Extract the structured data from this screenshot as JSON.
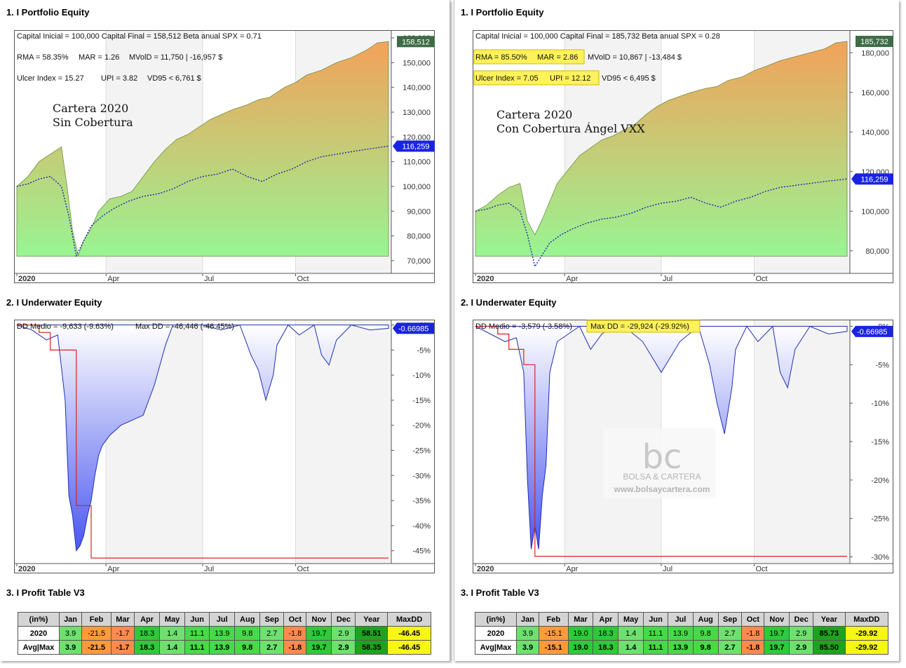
{
  "panels": [
    {
      "id": "left",
      "equity_title": "1. I Portfolio Equity",
      "underwater_title": "2. I Underwater Equity",
      "profit_title": "3. I Profit Table V3",
      "stats": {
        "line1": "Capital Inicial = 100,000   Capital Final = 158,512   Beta anual SPX = 0.71",
        "rma": "RMA = 58.35%",
        "mar": "MAR = 1.26",
        "mvold": "MVolD = 11,750 | -16,957 $",
        "ulcer": "Ulcer Index = 15.27",
        "upi": "UPI = 3.82",
        "vd95": "VD95 < 6,761 $"
      },
      "highlight_rma_mar": false,
      "highlight_ulcer_upi": false,
      "highlight_maxdd": false,
      "annotation_line1": "Cartera 2020",
      "annotation_line2": "Sin Cobertura",
      "dd_medio": "DD Medio = -9,633 (-9.63%)",
      "max_dd": "Max DD = -46,446 (-46.45%)",
      "final_equity_label": "158,512",
      "spx_label": "116,259",
      "uw_label": "-0.66985",
      "watermark": null
    },
    {
      "id": "right",
      "equity_title": "1. I Portfolio Equity",
      "underwater_title": "2. I Underwater Equity",
      "profit_title": "3. I Profit Table V3",
      "stats": {
        "line1": "Capital Inicial = 100,000   Capital Final = 185,732   Beta anual SPX = 0.28",
        "rma": "RMA = 85.50%",
        "mar": "MAR = 2.86",
        "mvold": "MVolD = 10,867 | -13,484 $",
        "ulcer": "Ulcer Index = 7.05",
        "upi": "UPI = 12.12",
        "vd95": "VD95 < 6,495 $"
      },
      "highlight_rma_mar": true,
      "highlight_ulcer_upi": true,
      "highlight_maxdd": true,
      "annotation_line1": "Cartera 2020",
      "annotation_line2": "Con Cobertura Ángel VXX",
      "dd_medio": "DD Medio = -3,579 (-3.58%)",
      "max_dd": "Max DD = -29,924 (-29.92%)",
      "final_equity_label": "185,732",
      "spx_label": "116,259",
      "uw_label": "-0.66985",
      "watermark": {
        "logo": "bc",
        "brand": "BOLSA & CARTERA",
        "url": "www.bolsaycartera.com"
      }
    }
  ],
  "profit_table": {
    "headers": [
      "(in%)",
      "Jan",
      "Feb",
      "Mar",
      "Apr",
      "May",
      "Jun",
      "Jul",
      "Aug",
      "Sep",
      "Oct",
      "Nov",
      "Dec",
      "Year",
      "MaxDD"
    ],
    "left_rows": [
      [
        "2020",
        "3.9",
        "-21.5",
        "-1.7",
        "18.3",
        "1.4",
        "11.1",
        "13.9",
        "9.8",
        "2.7",
        "-1.8",
        "19.7",
        "2.9",
        "58.51",
        "-46.45"
      ],
      [
        "Avg|Max",
        "3.9",
        "-21.5",
        "-1.7",
        "18.3",
        "1.4",
        "11.1",
        "13.9",
        "9.8",
        "2.7",
        "-1.8",
        "19.7",
        "2.9",
        "58.35",
        "-46.45"
      ]
    ],
    "right_rows": [
      [
        "2020",
        "3.9",
        "-15.1",
        "19.0",
        "18.3",
        "1.4",
        "11.1",
        "13.9",
        "9.8",
        "2.7",
        "-1.8",
        "19.7",
        "2.9",
        "85.73",
        "-29.92"
      ],
      [
        "Avg|Max",
        "3.9",
        "-15.1",
        "19.0",
        "18.3",
        "1.4",
        "11.1",
        "13.9",
        "9.8",
        "2.7",
        "-1.8",
        "19.7",
        "2.9",
        "85.50",
        "-29.92"
      ]
    ]
  },
  "chart_data": [
    {
      "type": "area",
      "panel": "left-equity",
      "x_tick_labels": [
        "2020",
        "Apr",
        "Jul",
        "Oct"
      ],
      "ylim": [
        66000,
        162000
      ],
      "y_ticks": [
        70000,
        80000,
        90000,
        100000,
        110000,
        120000,
        130000,
        140000,
        150000,
        160000
      ],
      "y_tick_labels": [
        "70,000",
        "80,000",
        "90,000",
        "100,000",
        "110,000",
        "120,000",
        "130,000",
        "140,000",
        "150,000",
        "160,000"
      ],
      "series": [
        {
          "name": "Portfolio",
          "x": [
            0,
            0.03,
            0.06,
            0.09,
            0.12,
            0.135,
            0.15,
            0.165,
            0.18,
            0.2,
            0.22,
            0.25,
            0.28,
            0.31,
            0.34,
            0.37,
            0.4,
            0.43,
            0.46,
            0.49,
            0.52,
            0.55,
            0.58,
            0.62,
            0.65,
            0.68,
            0.72,
            0.75,
            0.78,
            0.82,
            0.86,
            0.9,
            0.94,
            0.97,
            1.0
          ],
          "values": [
            100000,
            104000,
            110000,
            113000,
            116000,
            100000,
            82000,
            72000,
            78000,
            83000,
            90000,
            95000,
            96000,
            98000,
            104000,
            110000,
            115000,
            119000,
            121000,
            124000,
            127000,
            129000,
            131000,
            133000,
            135000,
            136000,
            140000,
            142000,
            145000,
            147000,
            150000,
            152000,
            155000,
            158000,
            158512
          ]
        },
        {
          "name": "SPX",
          "x": [
            0,
            0.03,
            0.06,
            0.09,
            0.12,
            0.14,
            0.16,
            0.18,
            0.2,
            0.23,
            0.26,
            0.3,
            0.34,
            0.38,
            0.42,
            0.46,
            0.5,
            0.54,
            0.58,
            0.62,
            0.66,
            0.7,
            0.74,
            0.78,
            0.82,
            0.86,
            0.9,
            0.94,
            1.0
          ],
          "values": [
            100000,
            101000,
            103000,
            104000,
            100000,
            88000,
            72000,
            78000,
            84000,
            88000,
            91000,
            94000,
            96000,
            97000,
            99000,
            102000,
            104000,
            105000,
            107000,
            104000,
            102000,
            105000,
            107000,
            110000,
            112000,
            113000,
            114000,
            115000,
            116259
          ]
        }
      ]
    },
    {
      "type": "area",
      "panel": "right-equity",
      "x_tick_labels": [
        "2020",
        "Apr",
        "Jul",
        "Oct"
      ],
      "ylim": [
        70000,
        190000
      ],
      "y_ticks": [
        80000,
        100000,
        120000,
        140000,
        160000,
        180000
      ],
      "y_tick_labels": [
        "80,000",
        "100,000",
        "120,000",
        "140,000",
        "160,000",
        "180,000"
      ],
      "series": [
        {
          "name": "Portfolio",
          "x": [
            0,
            0.03,
            0.06,
            0.09,
            0.12,
            0.14,
            0.16,
            0.18,
            0.2,
            0.22,
            0.25,
            0.28,
            0.31,
            0.34,
            0.37,
            0.4,
            0.43,
            0.46,
            0.49,
            0.52,
            0.55,
            0.58,
            0.62,
            0.65,
            0.68,
            0.72,
            0.75,
            0.78,
            0.82,
            0.86,
            0.9,
            0.94,
            0.97,
            1.0
          ],
          "values": [
            100000,
            103000,
            108000,
            112000,
            114000,
            95000,
            88000,
            96000,
            105000,
            114000,
            121000,
            128000,
            132000,
            136000,
            138000,
            141000,
            144000,
            149000,
            153000,
            156000,
            158000,
            160000,
            162000,
            163000,
            166000,
            168000,
            171000,
            173000,
            176000,
            178000,
            180000,
            182000,
            185000,
            185732
          ]
        },
        {
          "name": "SPX",
          "x": [
            0,
            0.03,
            0.06,
            0.09,
            0.12,
            0.14,
            0.16,
            0.18,
            0.2,
            0.23,
            0.26,
            0.3,
            0.34,
            0.38,
            0.42,
            0.46,
            0.5,
            0.54,
            0.58,
            0.62,
            0.66,
            0.7,
            0.74,
            0.78,
            0.82,
            0.86,
            0.9,
            0.94,
            1.0
          ],
          "values": [
            100000,
            101000,
            103000,
            104000,
            100000,
            88000,
            72000,
            78000,
            84000,
            88000,
            91000,
            94000,
            96000,
            97000,
            99000,
            102000,
            104000,
            105000,
            107000,
            104000,
            102000,
            105000,
            107000,
            110000,
            112000,
            113000,
            114000,
            115000,
            116259
          ]
        }
      ]
    },
    {
      "type": "area",
      "panel": "left-underwater",
      "x_tick_labels": [
        "2020",
        "Apr",
        "Jul",
        "Oct"
      ],
      "ylim": [
        -47,
        0.5
      ],
      "y_ticks": [
        0,
        -5,
        -10,
        -15,
        -20,
        -25,
        -30,
        -35,
        -40,
        -45
      ],
      "y_tick_labels": [
        "0%",
        "-5%",
        "-10%",
        "-15%",
        "-20%",
        "-25%",
        "-30%",
        "-35%",
        "-40%",
        "-45%"
      ],
      "series": [
        {
          "name": "Drawdown",
          "x": [
            0,
            0.04,
            0.08,
            0.11,
            0.13,
            0.14,
            0.15,
            0.16,
            0.17,
            0.18,
            0.19,
            0.2,
            0.21,
            0.22,
            0.23,
            0.25,
            0.28,
            0.31,
            0.34,
            0.37,
            0.4,
            0.42,
            0.45,
            0.5,
            0.55,
            0.6,
            0.63,
            0.65,
            0.67,
            0.69,
            0.7,
            0.73,
            0.76,
            0.8,
            0.82,
            0.84,
            0.86,
            0.9,
            0.95,
            1.0
          ],
          "values": [
            0,
            -1,
            -3,
            -2,
            -15,
            -34,
            -38,
            -45,
            -44,
            -42,
            -38,
            -35,
            -30,
            -26,
            -24,
            -22,
            -20,
            -19,
            -18,
            -12,
            -4,
            0,
            0,
            0,
            -1,
            0,
            -6,
            -9,
            -15,
            -10,
            -4,
            0,
            -2,
            0,
            -6,
            -8,
            -3,
            0,
            -1,
            -0.67
          ]
        },
        {
          "name": "Max DD",
          "x": [
            0,
            0.06,
            0.09,
            0.13,
            0.16,
            0.2,
            1.0
          ],
          "values": [
            0,
            -1.5,
            -5,
            -5,
            -36,
            -46.45,
            -46.45
          ]
        }
      ]
    },
    {
      "type": "area",
      "panel": "right-underwater",
      "x_tick_labels": [
        "2020",
        "Apr",
        "Jul",
        "Oct"
      ],
      "ylim": [
        -30.5,
        0.5
      ],
      "y_ticks": [
        0,
        -5,
        -10,
        -15,
        -20,
        -25,
        -30
      ],
      "y_tick_labels": [
        "0%",
        "-5%",
        "-10%",
        "-15%",
        "-20%",
        "-25%",
        "-30%"
      ],
      "series": [
        {
          "name": "Drawdown",
          "x": [
            0,
            0.04,
            0.08,
            0.11,
            0.13,
            0.14,
            0.15,
            0.16,
            0.17,
            0.18,
            0.19,
            0.2,
            0.22,
            0.25,
            0.28,
            0.31,
            0.34,
            0.37,
            0.4,
            0.45,
            0.5,
            0.55,
            0.6,
            0.63,
            0.65,
            0.67,
            0.69,
            0.7,
            0.73,
            0.76,
            0.8,
            0.82,
            0.84,
            0.86,
            0.9,
            0.95,
            1.0
          ],
          "values": [
            0,
            -1,
            -2,
            -1.5,
            -6,
            -20,
            -29,
            -26,
            -29,
            -22,
            -18,
            -6,
            -2,
            -1,
            0,
            -3,
            -1,
            0,
            0,
            -2,
            -6,
            -2,
            0,
            -5,
            -10,
            -14,
            -8,
            -3,
            0,
            -2,
            0,
            -6,
            -8,
            -3,
            0,
            -1,
            -0.67
          ]
        },
        {
          "name": "Max DD",
          "x": [
            0,
            0.06,
            0.09,
            0.13,
            0.16,
            0.2,
            1.0
          ],
          "values": [
            0,
            -1,
            -3,
            -5,
            -29.92,
            -29.92,
            -29.92
          ]
        }
      ]
    }
  ],
  "colors": {
    "equity_top": "#f2a25a",
    "equity_bottom": "#98f593",
    "uw_top": "#ffffff",
    "uw_bottom": "#4a57f0",
    "spx_line": "#1f2aa8",
    "uw_line": "#2030b0",
    "maxdd_line": "#e02020",
    "equity_tag": "#3e6b46",
    "spx_tag": "#1a24e0",
    "highlight": "#fff25a"
  }
}
